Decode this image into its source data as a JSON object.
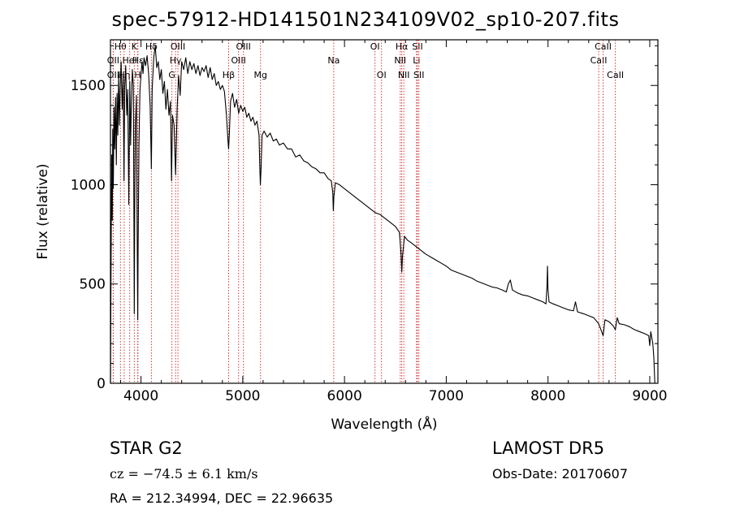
{
  "title": "spec-57912-HD141501N234109V02_sp10-207.fits",
  "footer": {
    "class_label": "STAR    G2",
    "survey": "LAMOST DR5",
    "cz": "cz = −74.5 ± 6.1 km/s",
    "obs_date": "Obs-Date: 20170607",
    "coords": "RA = 212.34994, DEC =  22.96635"
  },
  "colors": {
    "line_marker": "#cc2222",
    "spectrum": "#000000",
    "axes": "#000000"
  },
  "chart_data": {
    "type": "line",
    "title": "spec-57912-HD141501N234109V02_sp10-207.fits",
    "xlabel": "Wavelength (Å)",
    "ylabel": "Flux (relative)",
    "xlim": [
      3700,
      9080
    ],
    "ylim": [
      0,
      1730
    ],
    "xticks": [
      4000,
      5000,
      6000,
      7000,
      8000,
      9000
    ],
    "yticks": [
      0,
      500,
      1000,
      1500
    ],
    "grid": false,
    "series": [
      {
        "values": [
          [
            3700,
            0
          ],
          [
            3705,
            520
          ],
          [
            3712,
            1150
          ],
          [
            3718,
            820
          ],
          [
            3722,
            1280
          ],
          [
            3728,
            980
          ],
          [
            3735,
            1390
          ],
          [
            3742,
            1180
          ],
          [
            3750,
            1440
          ],
          [
            3758,
            1100
          ],
          [
            3765,
            1460
          ],
          [
            3772,
            1250
          ],
          [
            3780,
            1550
          ],
          [
            3788,
            1300
          ],
          [
            3795,
            1480
          ],
          [
            3805,
            1620
          ],
          [
            3815,
            1380
          ],
          [
            3825,
            1550
          ],
          [
            3833,
            1020
          ],
          [
            3840,
            1500
          ],
          [
            3850,
            1600
          ],
          [
            3860,
            1350
          ],
          [
            3870,
            1480
          ],
          [
            3880,
            900
          ],
          [
            3890,
            1520
          ],
          [
            3898,
            1200
          ],
          [
            3905,
            1400
          ],
          [
            3915,
            1580
          ],
          [
            3925,
            1500
          ],
          [
            3930,
            900
          ],
          [
            3934,
            350
          ],
          [
            3938,
            850
          ],
          [
            3945,
            1300
          ],
          [
            3955,
            1450
          ],
          [
            3962,
            800
          ],
          [
            3968,
            320
          ],
          [
            3972,
            700
          ],
          [
            3980,
            1200
          ],
          [
            3990,
            1480
          ],
          [
            4000,
            1550
          ],
          [
            4010,
            1620
          ],
          [
            4020,
            1560
          ],
          [
            4030,
            1640
          ],
          [
            4045,
            1600
          ],
          [
            4060,
            1650
          ],
          [
            4075,
            1560
          ],
          [
            4090,
            1400
          ],
          [
            4102,
            1080
          ],
          [
            4110,
            1480
          ],
          [
            4125,
            1640
          ],
          [
            4140,
            1700
          ],
          [
            4155,
            1590
          ],
          [
            4170,
            1620
          ],
          [
            4185,
            1530
          ],
          [
            4200,
            1580
          ],
          [
            4215,
            1460
          ],
          [
            4230,
            1520
          ],
          [
            4245,
            1380
          ],
          [
            4260,
            1480
          ],
          [
            4275,
            1350
          ],
          [
            4290,
            1420
          ],
          [
            4300,
            1020
          ],
          [
            4310,
            1350
          ],
          [
            4325,
            1300
          ],
          [
            4340,
            1050
          ],
          [
            4355,
            1380
          ],
          [
            4370,
            1550
          ],
          [
            4385,
            1450
          ],
          [
            4400,
            1620
          ],
          [
            4420,
            1580
          ],
          [
            4440,
            1640
          ],
          [
            4460,
            1560
          ],
          [
            4480,
            1620
          ],
          [
            4500,
            1580
          ],
          [
            4520,
            1610
          ],
          [
            4540,
            1560
          ],
          [
            4560,
            1600
          ],
          [
            4580,
            1550
          ],
          [
            4600,
            1590
          ],
          [
            4620,
            1570
          ],
          [
            4640,
            1600
          ],
          [
            4660,
            1540
          ],
          [
            4680,
            1590
          ],
          [
            4700,
            1530
          ],
          [
            4720,
            1560
          ],
          [
            4740,
            1500
          ],
          [
            4760,
            1520
          ],
          [
            4780,
            1480
          ],
          [
            4800,
            1500
          ],
          [
            4820,
            1470
          ],
          [
            4840,
            1350
          ],
          [
            4855,
            1220
          ],
          [
            4861,
            1180
          ],
          [
            4868,
            1250
          ],
          [
            4880,
            1420
          ],
          [
            4900,
            1460
          ],
          [
            4920,
            1390
          ],
          [
            4940,
            1430
          ],
          [
            4960,
            1360
          ],
          [
            4980,
            1400
          ],
          [
            5000,
            1370
          ],
          [
            5020,
            1390
          ],
          [
            5040,
            1340
          ],
          [
            5060,
            1360
          ],
          [
            5080,
            1320
          ],
          [
            5100,
            1340
          ],
          [
            5120,
            1300
          ],
          [
            5140,
            1320
          ],
          [
            5160,
            1250
          ],
          [
            5167,
            1100
          ],
          [
            5173,
            1000
          ],
          [
            5180,
            1080
          ],
          [
            5190,
            1250
          ],
          [
            5210,
            1270
          ],
          [
            5240,
            1240
          ],
          [
            5270,
            1260
          ],
          [
            5300,
            1220
          ],
          [
            5330,
            1230
          ],
          [
            5360,
            1200
          ],
          [
            5400,
            1210
          ],
          [
            5440,
            1180
          ],
          [
            5480,
            1180
          ],
          [
            5520,
            1140
          ],
          [
            5560,
            1150
          ],
          [
            5600,
            1120
          ],
          [
            5640,
            1110
          ],
          [
            5680,
            1090
          ],
          [
            5720,
            1080
          ],
          [
            5760,
            1060
          ],
          [
            5800,
            1060
          ],
          [
            5840,
            1030
          ],
          [
            5870,
            1020
          ],
          [
            5885,
            960
          ],
          [
            5890,
            870
          ],
          [
            5896,
            940
          ],
          [
            5910,
            1010
          ],
          [
            5950,
            1000
          ],
          [
            6000,
            980
          ],
          [
            6050,
            960
          ],
          [
            6100,
            940
          ],
          [
            6150,
            920
          ],
          [
            6200,
            900
          ],
          [
            6250,
            880
          ],
          [
            6300,
            860
          ],
          [
            6350,
            850
          ],
          [
            6400,
            830
          ],
          [
            6450,
            810
          ],
          [
            6500,
            790
          ],
          [
            6540,
            760
          ],
          [
            6556,
            650
          ],
          [
            6563,
            560
          ],
          [
            6570,
            640
          ],
          [
            6590,
            740
          ],
          [
            6620,
            720
          ],
          [
            6650,
            710
          ],
          [
            6700,
            690
          ],
          [
            6750,
            670
          ],
          [
            6800,
            650
          ],
          [
            6850,
            635
          ],
          [
            6900,
            620
          ],
          [
            6950,
            605
          ],
          [
            7000,
            590
          ],
          [
            7050,
            570
          ],
          [
            7100,
            560
          ],
          [
            7150,
            550
          ],
          [
            7200,
            540
          ],
          [
            7250,
            530
          ],
          [
            7300,
            515
          ],
          [
            7350,
            505
          ],
          [
            7400,
            495
          ],
          [
            7450,
            485
          ],
          [
            7500,
            480
          ],
          [
            7550,
            470
          ],
          [
            7590,
            460
          ],
          [
            7610,
            500
          ],
          [
            7630,
            520
          ],
          [
            7650,
            470
          ],
          [
            7700,
            455
          ],
          [
            7750,
            445
          ],
          [
            7800,
            440
          ],
          [
            7850,
            430
          ],
          [
            7900,
            420
          ],
          [
            7950,
            410
          ],
          [
            7980,
            400
          ],
          [
            7990,
            490
          ],
          [
            7995,
            590
          ],
          [
            8000,
            470
          ],
          [
            8010,
            410
          ],
          [
            8050,
            400
          ],
          [
            8100,
            390
          ],
          [
            8150,
            380
          ],
          [
            8200,
            370
          ],
          [
            8250,
            365
          ],
          [
            8270,
            410
          ],
          [
            8290,
            360
          ],
          [
            8350,
            350
          ],
          [
            8400,
            340
          ],
          [
            8450,
            330
          ],
          [
            8498,
            300
          ],
          [
            8542,
            240
          ],
          [
            8560,
            320
          ],
          [
            8600,
            310
          ],
          [
            8640,
            290
          ],
          [
            8662,
            270
          ],
          [
            8680,
            330
          ],
          [
            8700,
            300
          ],
          [
            8750,
            295
          ],
          [
            8800,
            285
          ],
          [
            8850,
            270
          ],
          [
            8900,
            260
          ],
          [
            8950,
            250
          ],
          [
            8990,
            240
          ],
          [
            9000,
            190
          ],
          [
            9010,
            260
          ],
          [
            9030,
            200
          ],
          [
            9040,
            130
          ],
          [
            9050,
            0
          ]
        ]
      }
    ],
    "line_markers": [
      {
        "label": "OII",
        "wavelength": 3727,
        "row": 2
      },
      {
        "label": "Hθ",
        "wavelength": 3798,
        "row": 1
      },
      {
        "label": "OII",
        "wavelength": 3727,
        "row": 3
      },
      {
        "label": "Hη",
        "wavelength": 3835,
        "row": 3
      },
      {
        "label": "HeI",
        "wavelength": 3889,
        "row": 2
      },
      {
        "label": "K",
        "wavelength": 3934,
        "row": 1
      },
      {
        "label": "H",
        "wavelength": 3968,
        "row": 3
      },
      {
        "label": "Hε",
        "wavelength": 3970,
        "row": 2
      },
      {
        "label": "Hδ",
        "wavelength": 4102,
        "row": 1
      },
      {
        "label": "OIII",
        "wavelength": 4363,
        "row": 1
      },
      {
        "label": "Hγ",
        "wavelength": 4340,
        "row": 2
      },
      {
        "label": "G",
        "wavelength": 4304,
        "row": 3
      },
      {
        "label": "OIII",
        "wavelength": 4959,
        "row": 2
      },
      {
        "label": "OIII",
        "wavelength": 5007,
        "row": 1
      },
      {
        "label": "Hβ",
        "wavelength": 4861,
        "row": 3
      },
      {
        "label": "Mg",
        "wavelength": 5175,
        "row": 3
      },
      {
        "label": "Na",
        "wavelength": 5894,
        "row": 2
      },
      {
        "label": "OI",
        "wavelength": 6300,
        "row": 1
      },
      {
        "label": "OI",
        "wavelength": 6364,
        "row": 3
      },
      {
        "label": "Hα",
        "wavelength": 6563,
        "row": 1
      },
      {
        "label": "NII",
        "wavelength": 6548,
        "row": 2
      },
      {
        "label": "NII",
        "wavelength": 6583,
        "row": 3
      },
      {
        "label": "SII",
        "wavelength": 6717,
        "row": 1
      },
      {
        "label": "Li",
        "wavelength": 6708,
        "row": 2
      },
      {
        "label": "SII",
        "wavelength": 6731,
        "row": 3
      },
      {
        "label": "CaII",
        "wavelength": 8498,
        "row": 2
      },
      {
        "label": "CaII",
        "wavelength": 8542,
        "row": 1
      },
      {
        "label": "CaII",
        "wavelength": 8662,
        "row": 3
      }
    ]
  }
}
